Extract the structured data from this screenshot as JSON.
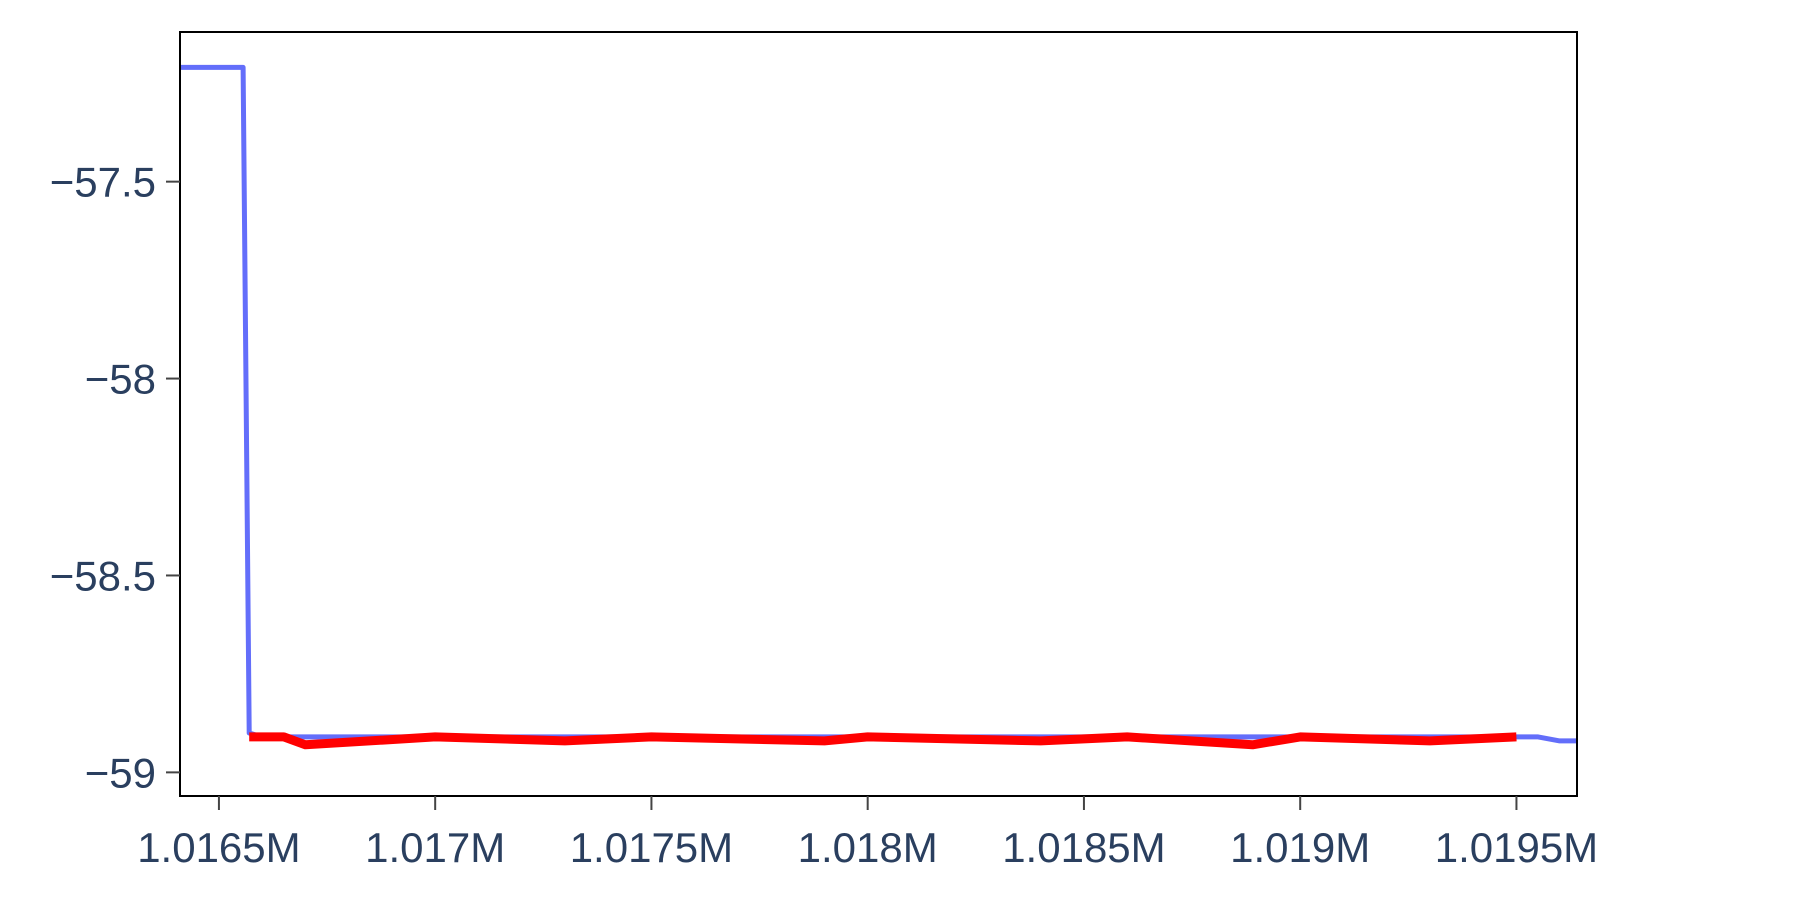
{
  "chart_data": {
    "type": "line",
    "title": "",
    "xlabel": "",
    "ylabel": "",
    "xlim": [
      1016410,
      1019640
    ],
    "ylim": [
      -59.06,
      -57.12
    ],
    "grid": false,
    "legend": "none",
    "x_ticks": [
      {
        "value": 1016500,
        "label": "1.0165M"
      },
      {
        "value": 1017000,
        "label": "1.017M"
      },
      {
        "value": 1017500,
        "label": "1.0175M"
      },
      {
        "value": 1018000,
        "label": "1.018M"
      },
      {
        "value": 1018500,
        "label": "1.0185M"
      },
      {
        "value": 1019000,
        "label": "1.019M"
      },
      {
        "value": 1019500,
        "label": "1.0195M"
      }
    ],
    "y_ticks": [
      {
        "value": -57.5,
        "label": "−57.5"
      },
      {
        "value": -58,
        "label": "−58"
      },
      {
        "value": -58.5,
        "label": "−58.5"
      },
      {
        "value": -59,
        "label": "−59"
      }
    ],
    "series": [
      {
        "color": "#636efa",
        "x": [
          1016410,
          1016450,
          1016500,
          1016540,
          1016556,
          1016570,
          1016600,
          1019400,
          1019500,
          1019550,
          1019600,
          1019640
        ],
        "y": [
          -57.21,
          -57.21,
          -57.21,
          -57.21,
          -57.21,
          -58.9,
          -58.91,
          -58.91,
          -58.91,
          -58.91,
          -58.92,
          -58.92
        ]
      },
      {
        "color": "#ff0000",
        "x": [
          1016570,
          1016650,
          1016700,
          1017000,
          1017300,
          1017500,
          1017900,
          1018000,
          1018400,
          1018600,
          1018890,
          1019000,
          1019300,
          1019500
        ],
        "y": [
          -58.91,
          -58.91,
          -58.93,
          -58.91,
          -58.92,
          -58.91,
          -58.92,
          -58.91,
          -58.92,
          -58.91,
          -58.93,
          -58.91,
          -58.92,
          -58.91
        ]
      }
    ]
  }
}
